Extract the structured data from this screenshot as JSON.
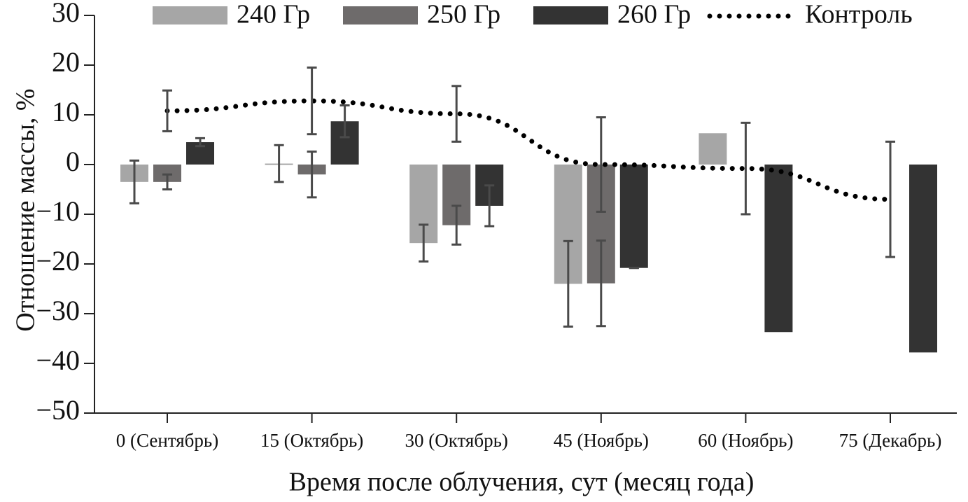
{
  "chart_data": {
    "type": "bar",
    "y_label": "Отношение массы, %",
    "x_label": "Время после облучения, сут (месяц года)",
    "categories": [
      "0 (Сентябрь)",
      "15 (Октябрь)",
      "30 (Октябрь)",
      "45 (Ноябрь)",
      "60 (Ноябрь)",
      "75 (Декабрь)"
    ],
    "ylim": [
      -50,
      30
    ],
    "yticks": [
      {
        "value": -50,
        "label": "−50"
      },
      {
        "value": -40,
        "label": "−40"
      },
      {
        "value": -30,
        "label": "−30"
      },
      {
        "value": -20,
        "label": "−20"
      },
      {
        "value": -10,
        "label": "−10"
      },
      0,
      10,
      20,
      30
    ],
    "series": [
      {
        "name": "240 Гр",
        "type": "bar",
        "color": "#a6a6a6",
        "values": [
          -3.5,
          0.2,
          -15.8,
          -24,
          6.3,
          null
        ],
        "errors": [
          4.3,
          3.7,
          3.7,
          8.6,
          null,
          null
        ]
      },
      {
        "name": "250 Гр",
        "type": "bar",
        "color": "#6e6b6b",
        "values": [
          -3.5,
          -2,
          -12.2,
          -23.9,
          null,
          null
        ],
        "errors": [
          1.5,
          4.6,
          3.9,
          8.6,
          null,
          null
        ]
      },
      {
        "name": "260 Гр",
        "type": "bar",
        "color": "#333333",
        "values": [
          4.5,
          8.7,
          -8.3,
          -20.8,
          -33.7,
          -37.8
        ],
        "errors": [
          0.8,
          3.2,
          4.1,
          0,
          null,
          null
        ]
      },
      {
        "name": "Контроль",
        "type": "line",
        "color": "#000000",
        "values": [
          10.8,
          12.8,
          10.2,
          0,
          -0.8,
          -7
        ],
        "errors": [
          4.1,
          6.7,
          5.6,
          9.5,
          9.2,
          11.6
        ]
      }
    ]
  }
}
